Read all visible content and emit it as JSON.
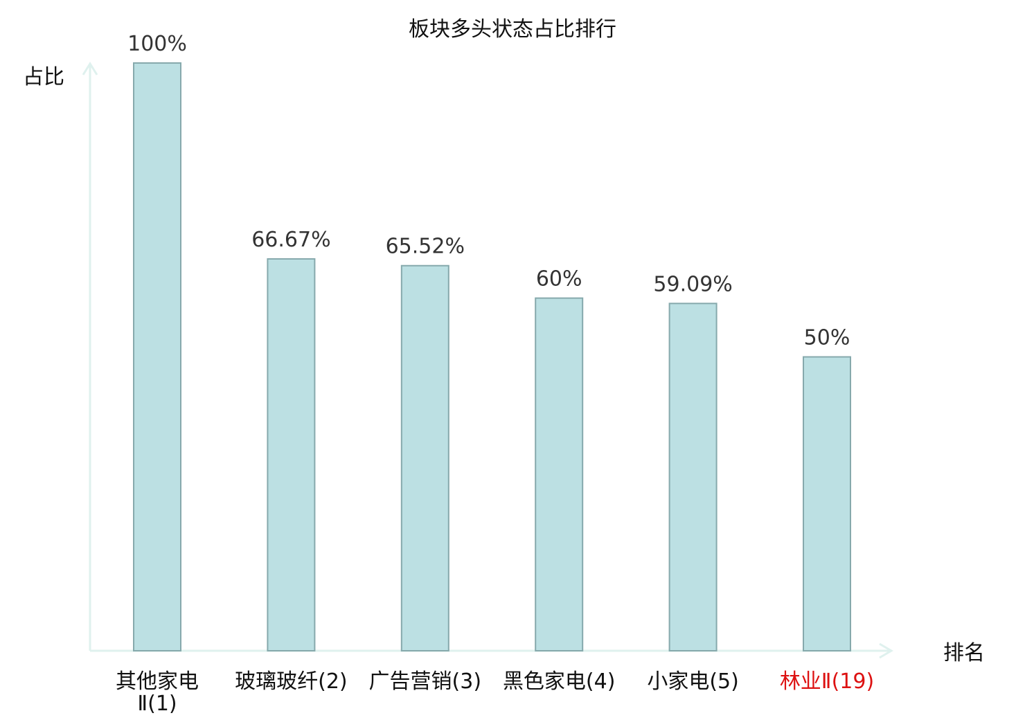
{
  "chart_data": {
    "type": "bar",
    "title": "板块多头状态占比排行",
    "ylabel": "占比",
    "xlabel": "排名",
    "ylim": [
      0,
      100
    ],
    "grid": false,
    "categories": [
      [
        "其他家电",
        "Ⅱ(1)"
      ],
      [
        "玻璃玻纤(2)"
      ],
      [
        "广告营销(3)"
      ],
      [
        "黑色家电(4)"
      ],
      [
        "小家电(5)"
      ],
      [
        "林业Ⅱ(19)"
      ]
    ],
    "values": [
      100,
      66.67,
      65.52,
      60,
      59.09,
      50
    ],
    "data_labels": [
      "100%",
      "66.67%",
      "65.52%",
      "60%",
      "59.09%",
      "50%"
    ],
    "highlight_index": 5
  },
  "colors": {
    "bar_fill": "#bce0e3",
    "bar_stroke": "#86a9ac",
    "axis": "#dff1ee",
    "highlight_text": "#dd1111",
    "text": "#111111"
  }
}
